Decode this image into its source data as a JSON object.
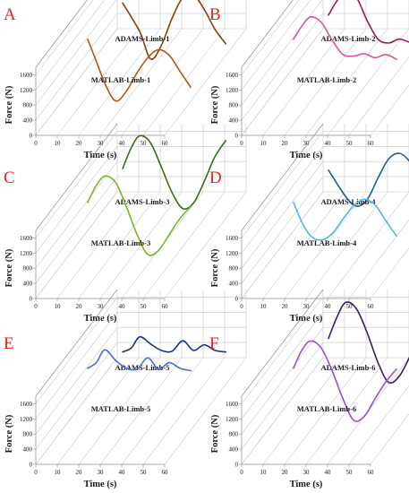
{
  "chart_data": [
    {
      "type": "line",
      "panel": "A",
      "xlabel": "Time (s)",
      "ylabel": "Force (N)",
      "xlim": [
        0,
        60
      ],
      "ylim": [
        0,
        1800
      ],
      "x_ticks": [
        0,
        10,
        20,
        30,
        40,
        50,
        60
      ],
      "y_ticks": [
        0,
        400,
        800,
        1200,
        1600
      ],
      "x_tick_labels": [
        "0",
        "10",
        "20",
        "30",
        "40",
        "50",
        "60"
      ],
      "y_tick_labels": [
        "0",
        "400",
        "800",
        "1200",
        "1600"
      ],
      "colors": [
        "#8b3d0a",
        "#b5560d"
      ],
      "series": [
        {
          "name": "ADAMS-Limb-1",
          "x": [
            12,
            20,
            25,
            30,
            35,
            40,
            45,
            50,
            55,
            60
          ],
          "values": [
            1530,
            1170,
            830,
            1000,
            1340,
            1600,
            1630,
            1450,
            1200,
            1020
          ]
        },
        {
          "name": "MATLAB-Limb-1",
          "x": [
            12,
            16,
            20,
            25,
            30,
            35,
            40,
            45,
            50,
            55,
            60
          ],
          "values": [
            1650,
            1380,
            1100,
            880,
            1000,
            1230,
            1420,
            1520,
            1450,
            1250,
            1050
          ]
        }
      ]
    },
    {
      "type": "line",
      "panel": "B",
      "xlabel": "Time (s)",
      "ylabel": "Force (N)",
      "xlim": [
        0,
        60
      ],
      "ylim": [
        0,
        1800
      ],
      "x_ticks": [
        0,
        10,
        20,
        30,
        40,
        50,
        60
      ],
      "y_ticks": [
        0,
        400,
        800,
        1200,
        1600
      ],
      "x_tick_labels": [
        "0",
        "10",
        "20",
        "30",
        "40",
        "50",
        "60"
      ],
      "y_tick_labels": [
        "0",
        "400",
        "800",
        "1200",
        "1600"
      ],
      "colors": [
        "#9a1859",
        "#e0509e"
      ],
      "series": [
        {
          "name": "ADAMS-Limb-2",
          "x": [
            12,
            16,
            20,
            25,
            30,
            35,
            40,
            45,
            50,
            55,
            60
          ],
          "values": [
            1380,
            1560,
            1680,
            1600,
            1310,
            1080,
            1030,
            1080,
            1040,
            1060,
            1010
          ]
        },
        {
          "name": "MATLAB-Limb-2",
          "x": [
            12,
            16,
            20,
            25,
            30,
            35,
            40,
            45,
            50,
            55,
            60
          ],
          "values": [
            1650,
            1820,
            1930,
            1860,
            1640,
            1460,
            1440,
            1470,
            1420,
            1460,
            1400
          ]
        }
      ]
    },
    {
      "type": "line",
      "panel": "C",
      "xlabel": "Time (s)",
      "ylabel": "Force (N)",
      "xlim": [
        0,
        60
      ],
      "ylim": [
        0,
        1800
      ],
      "x_ticks": [
        0,
        10,
        20,
        30,
        40,
        50,
        60
      ],
      "y_ticks": [
        0,
        400,
        800,
        1200,
        1600
      ],
      "x_tick_labels": [
        "0",
        "10",
        "20",
        "30",
        "40",
        "50",
        "60"
      ],
      "y_tick_labels": [
        "0",
        "400",
        "800",
        "1200",
        "1600"
      ],
      "colors": [
        "#3a6b1a",
        "#7ab52a"
      ],
      "series": [
        {
          "name": "ADAMS-Limb-3",
          "x": [
            12,
            16,
            20,
            25,
            30,
            35,
            40,
            45,
            50,
            55,
            60
          ],
          "values": [
            1500,
            1760,
            1910,
            1820,
            1520,
            1200,
            1000,
            1070,
            1340,
            1650,
            1850
          ]
        },
        {
          "name": "MATLAB-Limb-3",
          "x": [
            12,
            16,
            20,
            25,
            30,
            35,
            40,
            45,
            50,
            55,
            60
          ],
          "values": [
            1650,
            1860,
            1980,
            1900,
            1600,
            1250,
            1000,
            1050,
            1250,
            1450,
            1600
          ]
        }
      ]
    },
    {
      "type": "line",
      "panel": "D",
      "xlabel": "Time (s)",
      "ylabel": "Force (N)",
      "xlim": [
        0,
        60
      ],
      "ylim": [
        0,
        1800
      ],
      "x_ticks": [
        0,
        10,
        20,
        30,
        40,
        50,
        60
      ],
      "y_ticks": [
        0,
        400,
        800,
        1200,
        1600
      ],
      "x_tick_labels": [
        "0",
        "10",
        "20",
        "30",
        "40",
        "50",
        "60"
      ],
      "y_tick_labels": [
        "0",
        "400",
        "800",
        "1200",
        "1600"
      ],
      "colors": [
        "#1d5f8f",
        "#4fb8ea"
      ],
      "series": [
        {
          "name": "ADAMS-Limb-4",
          "x": [
            12,
            20,
            25,
            30,
            35,
            40,
            45,
            50,
            55,
            60
          ],
          "values": [
            1480,
            1150,
            1030,
            1110,
            1380,
            1620,
            1690,
            1580,
            1330,
            1100
          ]
        },
        {
          "name": "MATLAB-Limb-4",
          "x": [
            12,
            16,
            20,
            25,
            30,
            35,
            40,
            45,
            50,
            55,
            60
          ],
          "values": [
            1650,
            1400,
            1230,
            1180,
            1260,
            1440,
            1610,
            1690,
            1620,
            1420,
            1230
          ]
        }
      ]
    },
    {
      "type": "line",
      "panel": "E",
      "xlabel": "Time (s)",
      "ylabel": "Force (N)",
      "xlim": [
        0,
        60
      ],
      "ylim": [
        0,
        1800
      ],
      "x_ticks": [
        0,
        10,
        20,
        30,
        40,
        50,
        60
      ],
      "y_ticks": [
        0,
        400,
        800,
        1200,
        1600
      ],
      "x_tick_labels": [
        "0",
        "10",
        "20",
        "30",
        "40",
        "50",
        "60"
      ],
      "y_tick_labels": [
        "0",
        "400",
        "800",
        "1200",
        "1600"
      ],
      "colors": [
        "#1a2f9a",
        "#4d6be0"
      ],
      "series": [
        {
          "name": "ADAMS-Limb-5",
          "x": [
            12,
            16,
            20,
            25,
            30,
            35,
            40,
            45,
            50,
            55,
            60
          ],
          "values": [
            1280,
            1330,
            1470,
            1380,
            1300,
            1290,
            1420,
            1300,
            1370,
            1300,
            1280
          ]
        },
        {
          "name": "MATLAB-Limb-5",
          "x": [
            12,
            16,
            20,
            25,
            30,
            35,
            40,
            45,
            50,
            55,
            60
          ],
          "values": [
            1650,
            1720,
            1880,
            1750,
            1650,
            1640,
            1780,
            1640,
            1720,
            1650,
            1620
          ]
        }
      ]
    },
    {
      "type": "line",
      "panel": "F",
      "xlabel": "Time (s)",
      "ylabel": "Force (N)",
      "xlim": [
        0,
        60
      ],
      "ylim": [
        0,
        1800
      ],
      "x_ticks": [
        0,
        10,
        20,
        30,
        40,
        50,
        60
      ],
      "y_ticks": [
        0,
        400,
        800,
        1200,
        1600
      ],
      "x_tick_labels": [
        "0",
        "10",
        "20",
        "30",
        "40",
        "50",
        "60"
      ],
      "y_tick_labels": [
        "0",
        "400",
        "800",
        "1200",
        "1600"
      ],
      "colors": [
        "#3d1a6e",
        "#9a4de0"
      ],
      "series": [
        {
          "name": "ADAMS-Limb-6",
          "x": [
            12,
            16,
            20,
            25,
            30,
            35,
            40,
            45,
            50,
            55,
            60
          ],
          "values": [
            1450,
            1720,
            1900,
            1820,
            1520,
            1150,
            900,
            980,
            1230,
            1520,
            1700
          ]
        },
        {
          "name": "MATLAB-Limb-6",
          "x": [
            12,
            16,
            20,
            25,
            30,
            35,
            40,
            45,
            50,
            55,
            60
          ],
          "values": [
            1650,
            1880,
            1990,
            1900,
            1620,
            1270,
            1000,
            1050,
            1270,
            1480,
            1640
          ]
        }
      ]
    }
  ]
}
